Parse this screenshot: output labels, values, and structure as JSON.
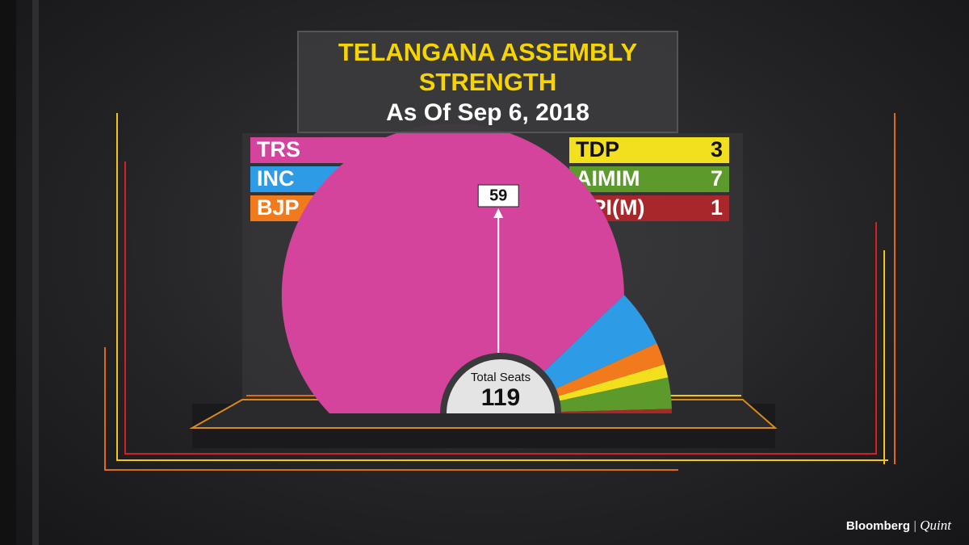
{
  "chart_data": {
    "type": "half-donut",
    "title": "TELANGANA ASSEMBLY STRENGTH",
    "subtitle": "As Of Sep 6, 2018",
    "categories": [
      "TRS",
      "INC",
      "BJP",
      "TDP",
      "AIMIM",
      "CPI(M)"
    ],
    "values": [
      90,
      13,
      5,
      3,
      7,
      1
    ],
    "colors": [
      "#d4449c",
      "#2d9be6",
      "#f07a1c",
      "#f2df1e",
      "#5c9a2c",
      "#a8272b"
    ],
    "center_label": "Total Seats",
    "total": 119,
    "majority": 59
  },
  "branding": {
    "name": "Bloomberg",
    "partner": "Quint"
  }
}
